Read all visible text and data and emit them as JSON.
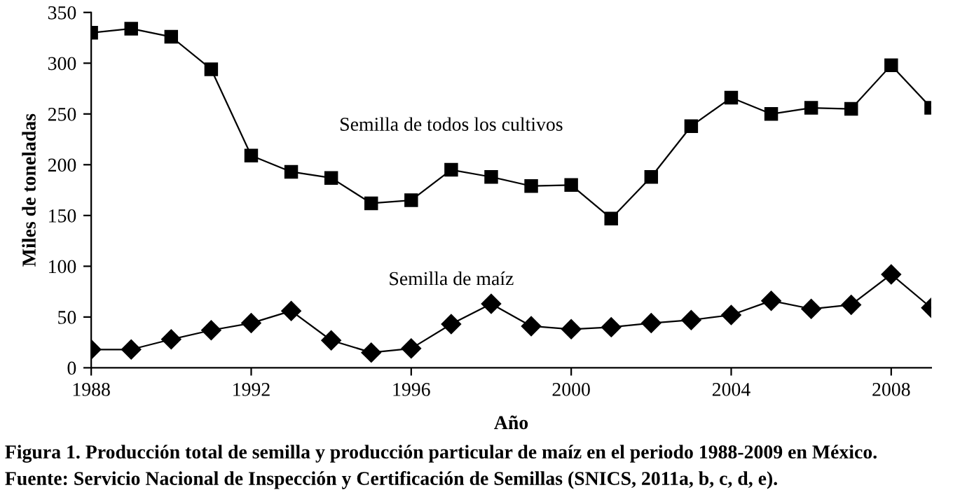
{
  "chart_data": {
    "type": "line",
    "xlabel": "Año",
    "ylabel": "Miles de toneladas",
    "x": [
      1988,
      1989,
      1990,
      1991,
      1992,
      1993,
      1994,
      1995,
      1996,
      1997,
      1998,
      1999,
      2000,
      2001,
      2002,
      2003,
      2004,
      2005,
      2006,
      2007,
      2008,
      2009
    ],
    "series": [
      {
        "name": "Semilla de todos los cultivos",
        "color": "#000000",
        "marker": "square",
        "values": [
          330,
          334,
          326,
          294,
          209,
          193,
          187,
          162,
          165,
          195,
          188,
          179,
          180,
          147,
          188,
          238,
          266,
          250,
          256,
          255,
          298,
          256
        ]
      },
      {
        "name": "Semilla de maíz",
        "color": "#000000",
        "marker": "diamond",
        "values": [
          18,
          18,
          28,
          37,
          44,
          56,
          27,
          15,
          19,
          43,
          63,
          41,
          38,
          40,
          44,
          47,
          52,
          66,
          58,
          62,
          92,
          59
        ]
      }
    ],
    "xlim": [
      1988,
      2009
    ],
    "xticks": [
      1988,
      1992,
      1996,
      2000,
      2004,
      2008
    ],
    "ylim": [
      0,
      350
    ],
    "yticks": [
      0,
      50,
      100,
      150,
      200,
      250,
      300,
      350
    ],
    "grid": false,
    "legend": false,
    "line_style": "solid",
    "annotations": [
      "Figura 1. Producción total de semilla y producción particular de maíz en el periodo 1988-2009 en México.",
      "Fuente: Servicio Nacional de Inspección y Certificación de Semillas (SNICS, 2011a, b, c, d, e)."
    ]
  }
}
